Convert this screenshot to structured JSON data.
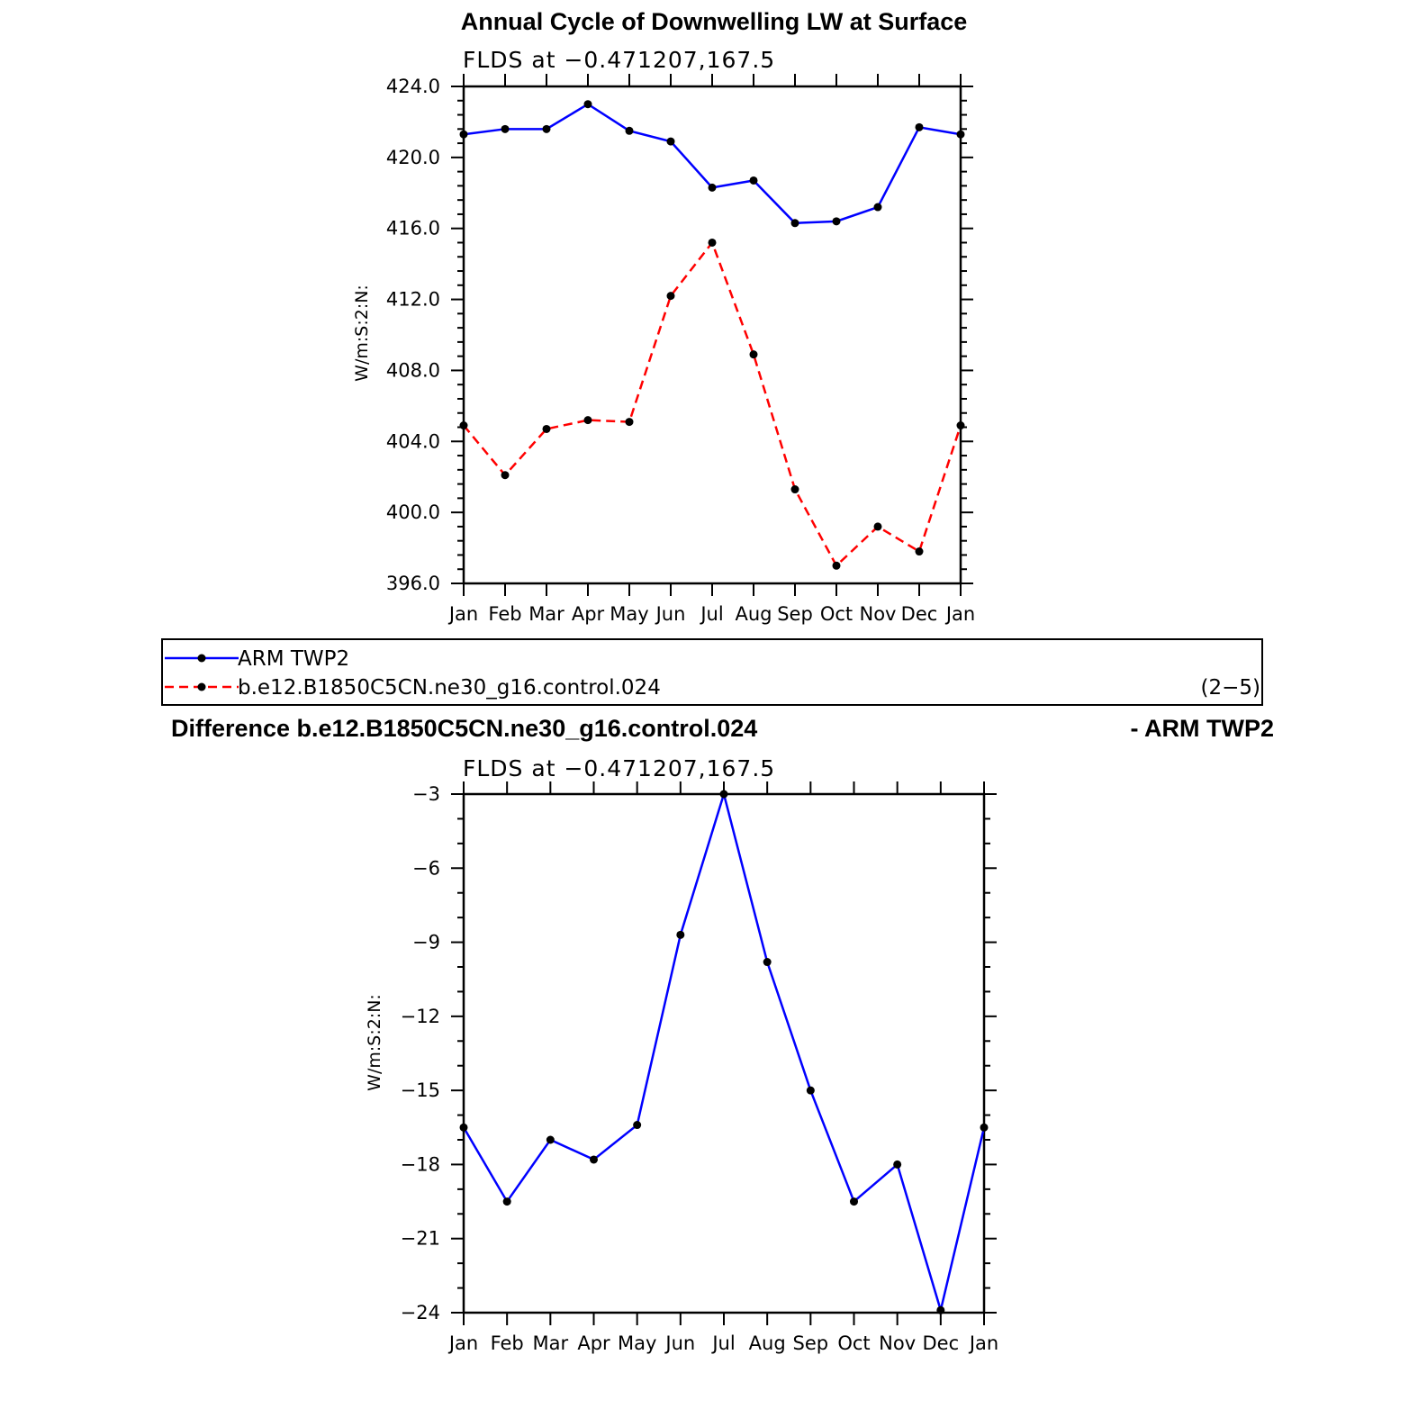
{
  "chart_data": [
    {
      "type": "line",
      "title": "Annual Cycle of Downwelling LW at Surface",
      "subtitle": "FLDS at −0.471207,167.5",
      "ylabel": "W/m:S:2:N:",
      "ylim": [
        396.0,
        424.0
      ],
      "yticks": [
        "424.0",
        "420.0",
        "416.0",
        "412.0",
        "408.0",
        "404.0",
        "400.0",
        "396.0"
      ],
      "ytick_values": [
        424,
        420,
        416,
        412,
        408,
        404,
        400,
        396
      ],
      "categories": [
        "Jan",
        "Feb",
        "Mar",
        "Apr",
        "May",
        "Jun",
        "Jul",
        "Aug",
        "Sep",
        "Oct",
        "Nov",
        "Dec",
        "Jan"
      ],
      "series": [
        {
          "name": "ARM TWP2",
          "color": "#0000ff",
          "dash": "solid",
          "values": [
            421.3,
            421.6,
            421.6,
            423.0,
            421.5,
            420.9,
            418.3,
            418.7,
            416.3,
            416.4,
            417.2,
            421.7,
            421.3
          ]
        },
        {
          "name": "b.e12.B1850C5CN.ne30_g16.control.024",
          "color": "#ff0000",
          "dash": "dashed",
          "values": [
            404.9,
            402.1,
            404.7,
            405.2,
            405.1,
            412.2,
            415.2,
            408.9,
            401.3,
            397.0,
            399.2,
            397.8,
            404.9
          ]
        }
      ],
      "grid": false
    },
    {
      "type": "line",
      "title": "Difference b.e12.B1850C5CN.ne30_g16.control.024",
      "title_right": "- ARM TWP2",
      "subtitle": "FLDS at −0.471207,167.5",
      "ylabel": "W/m:S:2:N:",
      "ylim": [
        -24,
        -3
      ],
      "yticks": [
        "−3",
        "−6",
        "−9",
        "−12",
        "−15",
        "−18",
        "−21",
        "−24"
      ],
      "ytick_values": [
        -3,
        -6,
        -9,
        -12,
        -15,
        -18,
        -21,
        -24
      ],
      "categories": [
        "Jan",
        "Feb",
        "Mar",
        "Apr",
        "May",
        "Jun",
        "Jul",
        "Aug",
        "Sep",
        "Oct",
        "Nov",
        "Dec",
        "Jan"
      ],
      "series": [
        {
          "color": "#0000ff",
          "dash": "solid",
          "values": [
            -16.5,
            -19.5,
            -17.0,
            -17.8,
            -16.4,
            -8.7,
            -3.0,
            -9.8,
            -15.0,
            -19.5,
            -18.0,
            -23.9,
            -16.5
          ]
        }
      ],
      "grid": false
    }
  ],
  "legend": {
    "label": "(2−5)"
  }
}
